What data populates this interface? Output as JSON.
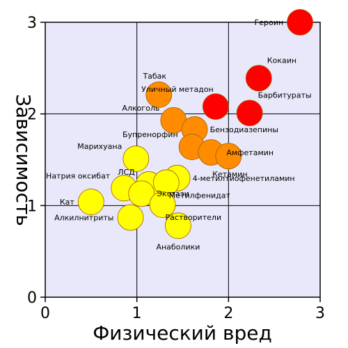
{
  "chart_data": {
    "type": "scatter",
    "title": "",
    "xlabel": "Физический вред",
    "ylabel": "Зависимость",
    "xlim": [
      0,
      3
    ],
    "ylim": [
      0,
      3
    ],
    "xticks": [
      "0",
      "1",
      "2",
      "3"
    ],
    "yticks": [
      "0",
      "1",
      "2",
      "3"
    ],
    "grid": true,
    "legend": "none",
    "colors": {
      "plot_bg": "#e8e8fa",
      "grid": "#000000",
      "red": "#ff0000",
      "orange": "#ff8c00",
      "gold": "#ffc400",
      "yellow": "#ffff00",
      "stroke": "#a05a00"
    },
    "points": [
      {
        "label": "Героин",
        "x": 2.78,
        "y": 3.0,
        "color": "red",
        "label_pos": "left"
      },
      {
        "label": "Кокаин",
        "x": 2.33,
        "y": 2.39,
        "color": "red",
        "label_pos": "right-up"
      },
      {
        "label": "Уличный метадон",
        "x": 1.86,
        "y": 2.08,
        "color": "red",
        "label_pos": "top-left"
      },
      {
        "label": "Барбитураты",
        "x": 2.23,
        "y": 2.01,
        "color": "red",
        "label_pos": "right-up"
      },
      {
        "label": "Табак",
        "x": 1.24,
        "y": 2.21,
        "color": "orange",
        "label_pos": "top-left"
      },
      {
        "label": "Алкоголь",
        "x": 1.4,
        "y": 1.93,
        "color": "orange",
        "label_pos": "left-up"
      },
      {
        "label": "Бензодиазепины",
        "x": 1.63,
        "y": 1.83,
        "color": "orange",
        "label_pos": "right"
      },
      {
        "label": "Бупренорфин",
        "x": 1.6,
        "y": 1.64,
        "color": "orange",
        "label_pos": "left-up"
      },
      {
        "label": "Амфетамин",
        "x": 1.81,
        "y": 1.58,
        "color": "orange",
        "label_pos": "right"
      },
      {
        "label": "Кетамин",
        "x": 2.0,
        "y": 1.54,
        "color": "orange",
        "label_pos": "below-right"
      },
      {
        "label": "Марихуана",
        "x": 0.99,
        "y": 1.51,
        "color": "yellow",
        "label_pos": "left-up"
      },
      {
        "label": "Натрия оксибат",
        "x": 0.86,
        "y": 1.19,
        "color": "yellow",
        "label_pos": "left-up"
      },
      {
        "label": "ЛСД",
        "x": 1.13,
        "y": 1.23,
        "color": "yellow",
        "label_pos": "left-up"
      },
      {
        "label": "4-метилтиофенетиламин",
        "x": 1.44,
        "y": 1.3,
        "color": "yellow",
        "label_pos": "right"
      },
      {
        "label": "Метилфенидат",
        "x": 1.32,
        "y": 1.25,
        "color": "yellow",
        "label_pos": "right-down"
      },
      {
        "label": "Экстази",
        "x": 1.05,
        "y": 1.13,
        "color": "yellow",
        "label_pos": "right"
      },
      {
        "label": "Кат",
        "x": 0.5,
        "y": 1.04,
        "color": "yellow",
        "label_pos": "left"
      },
      {
        "label": "Растворители",
        "x": 1.28,
        "y": 1.01,
        "color": "yellow",
        "label_pos": "right-down"
      },
      {
        "label": "Алкилнитриты",
        "x": 0.93,
        "y": 0.87,
        "color": "yellow",
        "label_pos": "left"
      },
      {
        "label": "Анаболики",
        "x": 1.45,
        "y": 0.78,
        "color": "yellow",
        "label_pos": "below"
      }
    ]
  }
}
